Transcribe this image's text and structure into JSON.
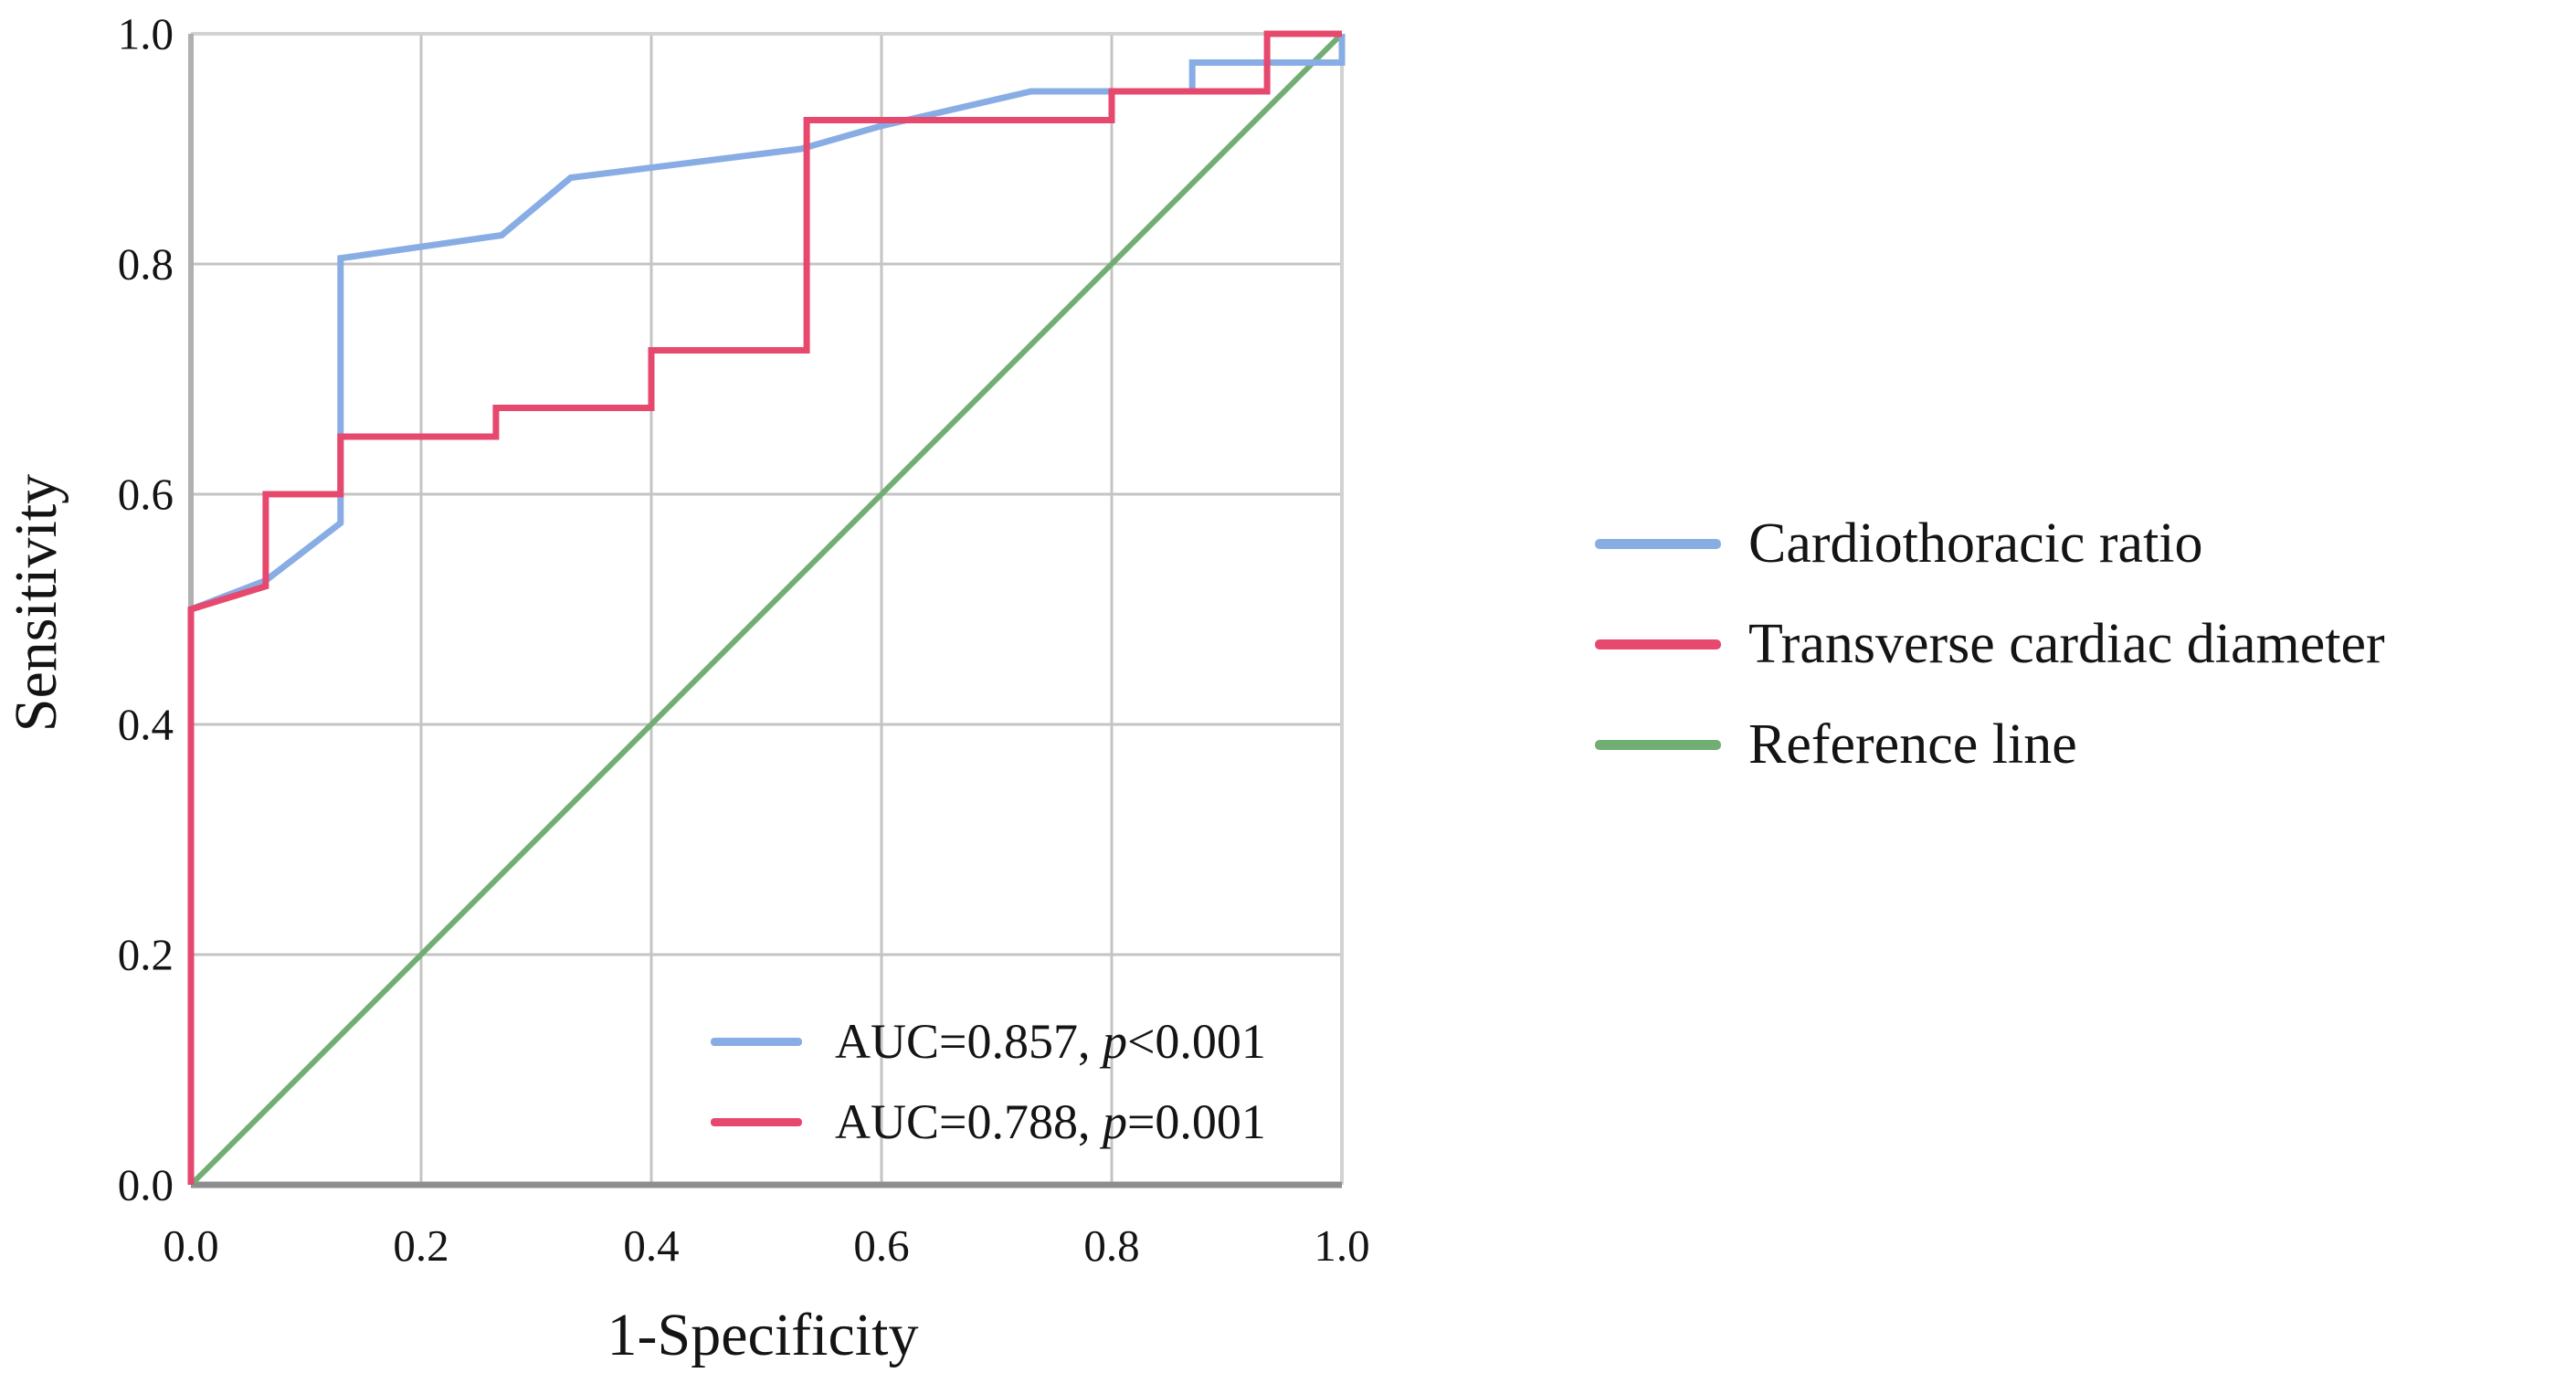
{
  "figure": {
    "background": "#ffffff",
    "text_color": "#141414",
    "grid_color": "#c4c4c4",
    "border_color": "#d2d2d2",
    "y_axis_color": "#b0b0b0",
    "x_axis_color": "#8e8e8e"
  },
  "chart_data": {
    "type": "line",
    "subtype": "roc-curve",
    "title": "",
    "xlabel": "1-Specificity",
    "ylabel": "Sensitivity",
    "xlim": [
      0,
      1
    ],
    "ylim": [
      0,
      1
    ],
    "grid": true,
    "legend_position": "right-outside",
    "x_ticks": [
      {
        "value": 0.0,
        "label": "0.0"
      },
      {
        "value": 0.2,
        "label": "0.2"
      },
      {
        "value": 0.4,
        "label": "0.4"
      },
      {
        "value": 0.6,
        "label": "0.6"
      },
      {
        "value": 0.8,
        "label": "0.8"
      },
      {
        "value": 1.0,
        "label": "1.0"
      }
    ],
    "y_ticks": [
      {
        "value": 0.0,
        "label": "0.0"
      },
      {
        "value": 0.2,
        "label": "0.2"
      },
      {
        "value": 0.4,
        "label": "0.4"
      },
      {
        "value": 0.6,
        "label": "0.6"
      },
      {
        "value": 0.8,
        "label": "0.8"
      },
      {
        "value": 1.0,
        "label": "1.0"
      }
    ],
    "series": [
      {
        "name": "Cardiothoracic ratio",
        "color": "#88ace4",
        "stroke_width": 7,
        "auc": "0.857",
        "p_value": "<0.001",
        "points": [
          [
            0,
            0
          ],
          [
            0,
            0.5
          ],
          [
            0.065,
            0.525
          ],
          [
            0.13,
            0.575
          ],
          [
            0.13,
            0.805
          ],
          [
            0.27,
            0.825
          ],
          [
            0.33,
            0.875
          ],
          [
            0.53,
            0.9
          ],
          [
            0.6,
            0.92
          ],
          [
            0.73,
            0.95
          ],
          [
            0.87,
            0.95
          ],
          [
            0.87,
            0.975
          ],
          [
            1,
            0.975
          ],
          [
            1,
            1
          ]
        ]
      },
      {
        "name": "Transverse cardiac diameter",
        "color": "#e6486e",
        "stroke_width": 7,
        "auc": "0.788",
        "p_value": "=0.001",
        "points": [
          [
            0,
            0
          ],
          [
            0,
            0.5
          ],
          [
            0.065,
            0.52
          ],
          [
            0.065,
            0.6
          ],
          [
            0.13,
            0.6
          ],
          [
            0.13,
            0.65
          ],
          [
            0.265,
            0.65
          ],
          [
            0.265,
            0.675
          ],
          [
            0.4,
            0.675
          ],
          [
            0.4,
            0.725
          ],
          [
            0.535,
            0.725
          ],
          [
            0.535,
            0.925
          ],
          [
            0.8,
            0.925
          ],
          [
            0.8,
            0.95
          ],
          [
            0.935,
            0.95
          ],
          [
            0.935,
            1
          ],
          [
            1,
            1
          ]
        ]
      },
      {
        "name": "Reference line",
        "color": "#72ad73",
        "stroke_width": 6,
        "points": [
          [
            0,
            0
          ],
          [
            1,
            1
          ]
        ]
      }
    ]
  },
  "annotations": [
    {
      "prefix": "AUC=0.857, ",
      "p": "p",
      "suffix": "<0.001",
      "series_index": 0
    },
    {
      "prefix": "AUC=0.788, ",
      "p": "p",
      "suffix": "=0.001",
      "series_index": 1
    }
  ]
}
